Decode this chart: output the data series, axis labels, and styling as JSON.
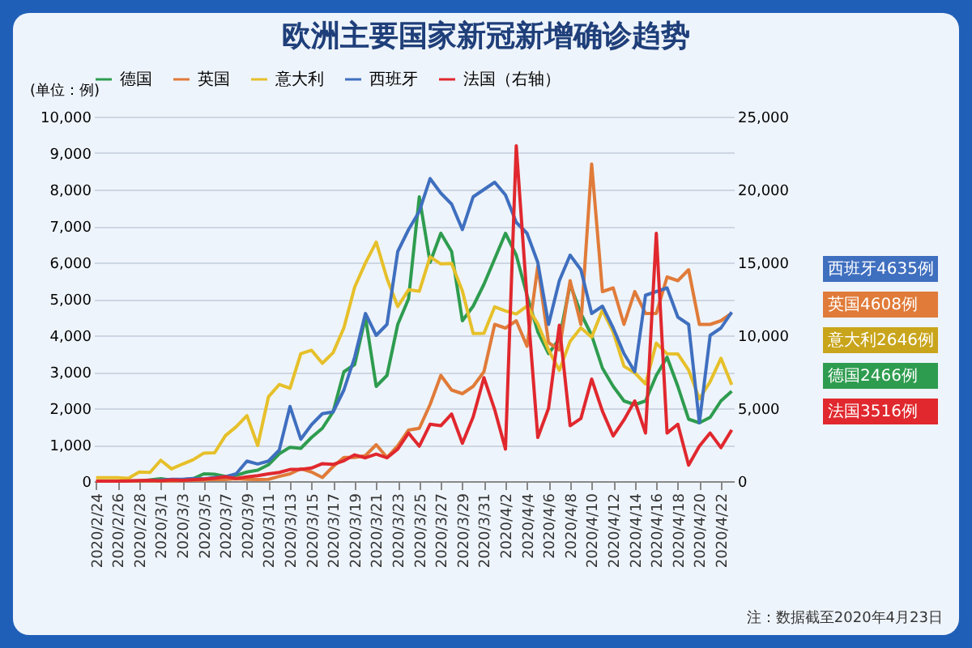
{
  "chart_data": {
    "type": "line",
    "title": "欧洲主要国家新冠新增确诊趋势",
    "ylabel": "(单位：例)",
    "categories": [
      "2020/2/24",
      null,
      "2020/2/26",
      null,
      "2020/2/28",
      null,
      "2020/3/1",
      null,
      "2020/3/3",
      null,
      "2020/3/5",
      null,
      "2020/3/7",
      null,
      "2020/3/9",
      null,
      "2020/3/11",
      null,
      "2020/3/13",
      null,
      "2020/3/15",
      null,
      "2020/3/17",
      null,
      "2020/3/19",
      null,
      "2020/3/21",
      null,
      "2020/3/23",
      null,
      "2020/3/25",
      null,
      "2020/3/27",
      null,
      "2020/3/29",
      null,
      "2020/3/31",
      null,
      "2020/4/2",
      null,
      "2020/4/4",
      null,
      "2020/4/6",
      null,
      "2020/4/8",
      null,
      "2020/4/10",
      null,
      "2020/4/12",
      null,
      "2020/4/14",
      null,
      "2020/4/16",
      null,
      "2020/4/18",
      null,
      "2020/4/20",
      null,
      "2020/4/22",
      null
    ],
    "series": [
      {
        "name": "德国",
        "color": "#2e9c4f",
        "values": [
          null,
          null,
          null,
          4,
          1,
          31,
          66,
          29,
          37,
          66,
          200,
          188,
          129,
          160,
          250,
          300,
          450,
          750,
          930,
          900,
          1200,
          1450,
          1900,
          3000,
          3200,
          4500,
          2600,
          2900,
          4300,
          5000,
          7800,
          6000,
          6800,
          6300,
          4400,
          4800,
          5400,
          6100,
          6800,
          6200,
          5100,
          4100,
          3500,
          3900,
          5400,
          4600,
          4000,
          3100,
          2600,
          2200,
          2100,
          2200,
          2900,
          3400,
          2600,
          1700,
          1600,
          1750,
          2200,
          2466
        ]
      },
      {
        "name": "英国",
        "color": "#e07b39",
        "values": [
          0,
          0,
          0,
          2,
          5,
          3,
          12,
          4,
          11,
          34,
          29,
          48,
          43,
          67,
          48,
          46,
          50,
          130,
          200,
          340,
          250,
          100,
          400,
          650,
          650,
          700,
          1000,
          650,
          970,
          1400,
          1450,
          2100,
          2900,
          2500,
          2400,
          2600,
          3000,
          4300,
          4200,
          4400,
          3700,
          5900,
          3800,
          3600,
          5500,
          4300,
          8700,
          5200,
          5300,
          4300,
          5200,
          4600,
          4600,
          5600,
          5500,
          5800,
          4300,
          4300,
          4400,
          4608
        ]
      },
      {
        "name": "意大利",
        "color": "#e6c02a",
        "values": [
          93,
          97,
          93,
          78,
          250,
          238,
          573,
          335,
          466,
          587,
          769,
          778,
          1247,
          1492,
          1797,
          977,
          2313,
          2651,
          2547,
          3497,
          3590,
          3233,
          3526,
          4207,
          5322,
          5986,
          6557,
          5560,
          4789,
          5249,
          5210,
          6153,
          5959,
          5974,
          5217,
          4050,
          4053,
          4782,
          4668,
          4585,
          4805,
          4316,
          3599,
          3039,
          3836,
          4204,
          3951,
          4694,
          4092,
          3153,
          2972,
          2667,
          3786,
          3493,
          3491,
          3047,
          2256,
          2729,
          3370,
          2646
        ]
      },
      {
        "name": "西班牙",
        "color": "#3f6fbf",
        "values": [
          null,
          null,
          null,
          null,
          null,
          20,
          30,
          50,
          50,
          70,
          60,
          100,
          120,
          200,
          550,
          470,
          550,
          850,
          2050,
          1150,
          1550,
          1850,
          1900,
          2500,
          3400,
          4600,
          4000,
          4300,
          6300,
          6900,
          7400,
          8300,
          7900,
          7600,
          6900,
          7800,
          8000,
          8200,
          7850,
          7100,
          6800,
          6000,
          4300,
          5500,
          6200,
          5800,
          4600,
          4800,
          4200,
          3500,
          3000,
          5100,
          5200,
          5300,
          4500,
          4300,
          1600,
          4000,
          4200,
          4635
        ]
      },
      {
        "name": "法国（右轴）",
        "color": "#e0282e",
        "axis": "y2",
        "values": [
          0,
          2,
          3,
          20,
          40,
          50,
          30,
          80,
          60,
          100,
          140,
          190,
          300,
          180,
          290,
          370,
          500,
          600,
          800,
          800,
          900,
          1200,
          1150,
          1400,
          1800,
          1600,
          1850,
          1600,
          2200,
          3300,
          2400,
          3900,
          3800,
          4600,
          2600,
          4400,
          7100,
          4900,
          2200,
          23000,
          12500,
          3000,
          5000,
          10700,
          3800,
          4300,
          7000,
          4800,
          3100,
          4200,
          5500,
          3300,
          17000,
          3300,
          3900,
          1100,
          2400,
          3300,
          2300,
          3516
        ]
      }
    ],
    "ylim": [
      0,
      10000
    ],
    "yticks": [
      0,
      {
        "value": 1000,
        "label": "1,000"
      },
      {
        "value": 2000,
        "label": "2,000"
      },
      {
        "value": 3000,
        "label": "3,000"
      },
      {
        "value": 4000,
        "label": "4,000"
      },
      {
        "value": 5000,
        "label": "5,000"
      },
      {
        "value": 6000,
        "label": "6,000"
      },
      {
        "value": 7000,
        "label": "7,000"
      },
      {
        "value": 8000,
        "label": "8,000"
      },
      {
        "value": 9000,
        "label": "9,000"
      },
      {
        "value": 10000,
        "label": "10,000"
      }
    ],
    "y2lim": [
      0,
      25000
    ],
    "y2ticks": [
      0,
      {
        "value": 5000,
        "label": "5,000"
      },
      {
        "value": 10000,
        "label": "10,000"
      },
      {
        "value": 15000,
        "label": "15,000"
      },
      {
        "value": 20000,
        "label": "20,000"
      },
      {
        "value": 25000,
        "label": "25,000"
      }
    ],
    "grid": "y",
    "legend": "top",
    "marker": "none",
    "line_style": "solid",
    "annotations": [
      "西班牙4635例",
      "英国4608例",
      "意大利2646例",
      "德国2466例",
      "法国3516例",
      "注：数据截至2020年4月23日"
    ]
  }
}
